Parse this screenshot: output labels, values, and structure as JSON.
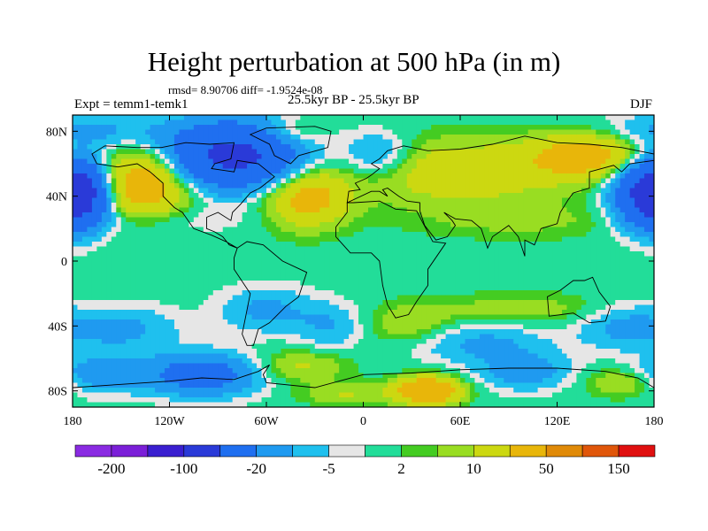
{
  "chart_data": {
    "type": "heatmap",
    "title": "Height perturbation at 500 hPa (in m)",
    "stats_text": "rmsd= 8.90706 diff= -1.9524e-08",
    "left_label": "Expt = temm1-temk1",
    "center_label": "25.5kyr BP - 25.5kyr BP",
    "right_label": "DJF",
    "xlim": [
      -180,
      180
    ],
    "ylim": [
      -90,
      90
    ],
    "x_ticks": [
      {
        "value": -180,
        "label": "180"
      },
      {
        "value": -120,
        "label": "120W"
      },
      {
        "value": -60,
        "label": "60W"
      },
      {
        "value": 0,
        "label": "0"
      },
      {
        "value": 60,
        "label": "60E"
      },
      {
        "value": 120,
        "label": "120E"
      },
      {
        "value": 180,
        "label": "180"
      }
    ],
    "y_ticks": [
      {
        "value": 80,
        "label": "80N"
      },
      {
        "value": 40,
        "label": "40N"
      },
      {
        "value": 0,
        "label": "0"
      },
      {
        "value": -40,
        "label": "40S"
      },
      {
        "value": -80,
        "label": "80S"
      }
    ],
    "colorbar": {
      "colors": [
        "#8a2be2",
        "#7b1fd8",
        "#3a1fd0",
        "#2a3ad8",
        "#1f6ff0",
        "#1f9af0",
        "#1fc0ee",
        "#e6e6e6",
        "#22dd99",
        "#44cc22",
        "#99dd22",
        "#ccd811",
        "#e8b60a",
        "#e08a08",
        "#e0560a",
        "#e01010"
      ],
      "labels": [
        {
          "index": 1,
          "text": "-200"
        },
        {
          "index": 3,
          "text": "-100"
        },
        {
          "index": 5,
          "text": "-20"
        },
        {
          "index": 7,
          "text": "-5"
        },
        {
          "index": 9,
          "text": "2"
        },
        {
          "index": 11,
          "text": "10"
        },
        {
          "index": 13,
          "text": "50"
        },
        {
          "index": 15,
          "text": "150"
        }
      ]
    },
    "anomalies": [
      {
        "lon": -135,
        "lat": 48,
        "amp": 34,
        "sx": 20,
        "sy": 15
      },
      {
        "lon": -35,
        "lat": 40,
        "amp": 28,
        "sx": 18,
        "sy": 13
      },
      {
        "lon": 60,
        "lat": 55,
        "amp": 18,
        "sx": 45,
        "sy": 14
      },
      {
        "lon": 140,
        "lat": 65,
        "amp": 28,
        "sx": 25,
        "sy": 10
      },
      {
        "lon": -80,
        "lat": 65,
        "amp": -60,
        "sx": 30,
        "sy": 14
      },
      {
        "lon": -175,
        "lat": 42,
        "amp": -50,
        "sx": 12,
        "sy": 14
      },
      {
        "lon": 175,
        "lat": 42,
        "amp": -45,
        "sx": 15,
        "sy": 14
      },
      {
        "lon": -170,
        "lat": 80,
        "amp": -12,
        "sx": 35,
        "sy": 8
      },
      {
        "lon": -45,
        "lat": 78,
        "amp": 12,
        "sx": 15,
        "sy": 7
      },
      {
        "lon": 10,
        "lat": 65,
        "amp": -15,
        "sx": 15,
        "sy": 10
      },
      {
        "lon": 100,
        "lat": 25,
        "amp": 6,
        "sx": 50,
        "sy": 8
      },
      {
        "lon": -130,
        "lat": 25,
        "amp": -6,
        "sx": 40,
        "sy": 6
      },
      {
        "lon": -150,
        "lat": -42,
        "amp": -12,
        "sx": 25,
        "sy": 10
      },
      {
        "lon": -60,
        "lat": -30,
        "amp": -12,
        "sx": 20,
        "sy": 10
      },
      {
        "lon": -20,
        "lat": -40,
        "amp": -10,
        "sx": 15,
        "sy": 10
      },
      {
        "lon": 30,
        "lat": -40,
        "amp": 10,
        "sx": 20,
        "sy": 9
      },
      {
        "lon": 70,
        "lat": -50,
        "amp": -12,
        "sx": 30,
        "sy": 9
      },
      {
        "lon": 100,
        "lat": -30,
        "amp": 8,
        "sx": 40,
        "sy": 7
      },
      {
        "lon": 160,
        "lat": -40,
        "amp": -12,
        "sx": 20,
        "sy": 10
      },
      {
        "lon": -100,
        "lat": -70,
        "amp": -30,
        "sx": 25,
        "sy": 9
      },
      {
        "lon": -165,
        "lat": -70,
        "amp": -15,
        "sx": 20,
        "sy": 8
      },
      {
        "lon": -40,
        "lat": -65,
        "amp": 12,
        "sx": 20,
        "sy": 7
      },
      {
        "lon": 40,
        "lat": -80,
        "amp": 40,
        "sx": 14,
        "sy": 6
      },
      {
        "lon": 100,
        "lat": -68,
        "amp": -15,
        "sx": 20,
        "sy": 8
      },
      {
        "lon": 160,
        "lat": -75,
        "amp": 12,
        "sx": 15,
        "sy": 6
      },
      {
        "lon": -10,
        "lat": -82,
        "amp": 10,
        "sx": 20,
        "sy": 5
      }
    ],
    "continents": [
      [
        [
          -168,
          66
        ],
        [
          -160,
          71
        ],
        [
          -140,
          70
        ],
        [
          -125,
          70
        ],
        [
          -110,
          73
        ],
        [
          -95,
          72
        ],
        [
          -80,
          73
        ],
        [
          -82,
          63
        ],
        [
          -92,
          60
        ],
        [
          -94,
          57
        ],
        [
          -80,
          55
        ],
        [
          -78,
          62
        ],
        [
          -65,
          60
        ],
        [
          -55,
          52
        ],
        [
          -64,
          45
        ],
        [
          -70,
          42
        ],
        [
          -76,
          35
        ],
        [
          -81,
          30
        ],
        [
          -82,
          25
        ],
        [
          -90,
          30
        ],
        [
          -97,
          27
        ],
        [
          -97,
          20
        ],
        [
          -92,
          18
        ],
        [
          -87,
          15
        ],
        [
          -83,
          10
        ],
        [
          -78,
          8
        ],
        [
          -85,
          12
        ],
        [
          -94,
          16
        ],
        [
          -105,
          20
        ],
        [
          -112,
          30
        ],
        [
          -117,
          33
        ],
        [
          -124,
          40
        ],
        [
          -124,
          48
        ],
        [
          -132,
          55
        ],
        [
          -140,
          60
        ],
        [
          -152,
          58
        ],
        [
          -165,
          60
        ],
        [
          -168,
          66
        ]
      ],
      [
        [
          -45,
          60
        ],
        [
          -55,
          65
        ],
        [
          -58,
          72
        ],
        [
          -70,
          78
        ],
        [
          -60,
          82
        ],
        [
          -30,
          83
        ],
        [
          -20,
          80
        ],
        [
          -22,
          70
        ],
        [
          -40,
          65
        ],
        [
          -45,
          60
        ]
      ],
      [
        [
          -78,
          8
        ],
        [
          -72,
          12
        ],
        [
          -62,
          10
        ],
        [
          -50,
          0
        ],
        [
          -35,
          -7
        ],
        [
          -40,
          -22
        ],
        [
          -48,
          -28
        ],
        [
          -58,
          -38
        ],
        [
          -65,
          -42
        ],
        [
          -68,
          -52
        ],
        [
          -72,
          -52
        ],
        [
          -75,
          -45
        ],
        [
          -73,
          -35
        ],
        [
          -70,
          -20
        ],
        [
          -80,
          -5
        ],
        [
          -80,
          2
        ],
        [
          -78,
          8
        ]
      ],
      [
        [
          -10,
          36
        ],
        [
          -6,
          36
        ],
        [
          10,
          37
        ],
        [
          20,
          32
        ],
        [
          33,
          31
        ],
        [
          43,
          12
        ],
        [
          51,
          11
        ],
        [
          40,
          -5
        ],
        [
          40,
          -15
        ],
        [
          33,
          -25
        ],
        [
          28,
          -33
        ],
        [
          20,
          -35
        ],
        [
          15,
          -27
        ],
        [
          12,
          -15
        ],
        [
          10,
          0
        ],
        [
          5,
          5
        ],
        [
          -8,
          5
        ],
        [
          -17,
          15
        ],
        [
          -17,
          21
        ],
        [
          -10,
          30
        ],
        [
          -10,
          36
        ]
      ],
      [
        [
          -10,
          36
        ],
        [
          -9,
          43
        ],
        [
          -2,
          44
        ],
        [
          -5,
          48
        ],
        [
          2,
          51
        ],
        [
          5,
          53
        ],
        [
          10,
          57
        ],
        [
          5,
          60
        ],
        [
          10,
          63
        ],
        [
          15,
          68
        ],
        [
          25,
          71
        ],
        [
          40,
          68
        ],
        [
          60,
          69
        ],
        [
          80,
          72
        ],
        [
          100,
          77
        ],
        [
          120,
          73
        ],
        [
          140,
          72
        ],
        [
          160,
          70
        ],
        [
          175,
          67
        ],
        [
          180,
          66
        ],
        [
          180,
          62
        ],
        [
          165,
          60
        ],
        [
          160,
          55
        ],
        [
          155,
          59
        ],
        [
          140,
          55
        ],
        [
          140,
          45
        ],
        [
          130,
          42
        ],
        [
          127,
          38
        ],
        [
          122,
          30
        ],
        [
          120,
          23
        ],
        [
          110,
          20
        ],
        [
          106,
          10
        ],
        [
          100,
          13
        ],
        [
          100,
          3
        ],
        [
          96,
          15
        ],
        [
          90,
          22
        ],
        [
          80,
          15
        ],
        [
          77,
          8
        ],
        [
          73,
          20
        ],
        [
          67,
          25
        ],
        [
          57,
          26
        ],
        [
          50,
          30
        ],
        [
          55,
          25
        ],
        [
          57,
          22
        ],
        [
          52,
          15
        ],
        [
          45,
          13
        ],
        [
          38,
          22
        ],
        [
          35,
          31
        ],
        [
          35,
          36
        ],
        [
          27,
          37
        ],
        [
          22,
          40
        ],
        [
          15,
          45
        ],
        [
          12,
          44
        ],
        [
          15,
          40
        ],
        [
          10,
          43
        ],
        [
          5,
          43
        ],
        [
          -10,
          36
        ]
      ],
      [
        [
          114,
          -22
        ],
        [
          122,
          -18
        ],
        [
          130,
          -12
        ],
        [
          137,
          -12
        ],
        [
          142,
          -10
        ],
        [
          146,
          -19
        ],
        [
          153,
          -28
        ],
        [
          150,
          -37
        ],
        [
          140,
          -38
        ],
        [
          130,
          -32
        ],
        [
          115,
          -34
        ],
        [
          114,
          -22
        ]
      ],
      [
        [
          -180,
          -78
        ],
        [
          -150,
          -76
        ],
        [
          -120,
          -74
        ],
        [
          -100,
          -72
        ],
        [
          -80,
          -73
        ],
        [
          -65,
          -68
        ],
        [
          -58,
          -64
        ],
        [
          -62,
          -70
        ],
        [
          -60,
          -75
        ],
        [
          -30,
          -78
        ],
        [
          0,
          -70
        ],
        [
          30,
          -69
        ],
        [
          60,
          -67
        ],
        [
          90,
          -66
        ],
        [
          120,
          -66
        ],
        [
          150,
          -68
        ],
        [
          170,
          -72
        ],
        [
          180,
          -78
        ],
        [
          180,
          -90
        ],
        [
          -180,
          -90
        ]
      ]
    ]
  }
}
